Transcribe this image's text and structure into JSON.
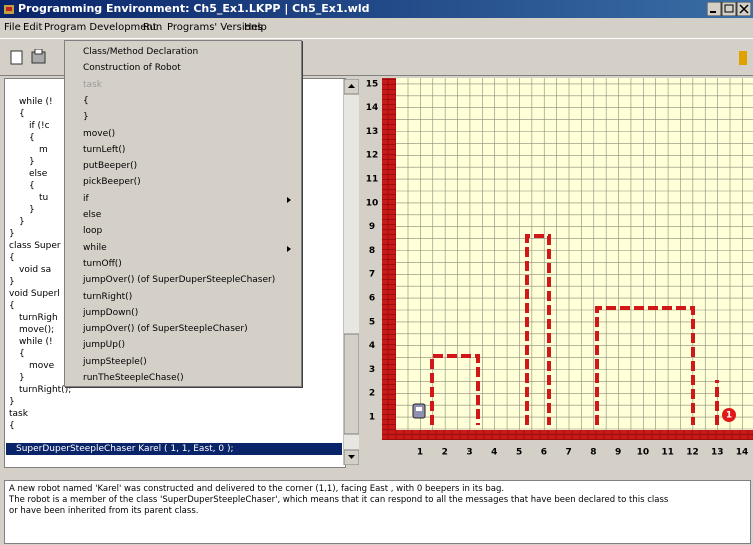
{
  "window": {
    "title": "Programming Environment: Ch5_Ex1.LKPP  |  Ch5_Ex1.wld"
  },
  "menu": [
    "File",
    "Edit",
    "Program Development",
    "Run",
    "Programs' Versions",
    "Help"
  ],
  "dropdown": {
    "items": [
      "Class/Method Declaration",
      "Construction of Robot",
      "task",
      "{",
      "}",
      "move()",
      "turnLeft()",
      "putBeeper()",
      "pickBeeper()",
      "if",
      "else",
      "loop",
      "while",
      "turnOff()",
      "jumpOver() (of SuperDuperSteepleChaser)",
      "turnRight()",
      "jumpDown()",
      "jumpOver() (of SuperSteepleChaser)",
      "jumpUp()",
      "jumpSteeple()",
      "runTheSteepleChase()"
    ]
  },
  "code": {
    "lines": [
      "while (!",
      "{",
      "if (!c",
      "{",
      "m",
      "}",
      "else",
      "{",
      "tu",
      "}",
      "}",
      "}",
      "class Super",
      "{",
      "void sa",
      "}",
      "void Superl",
      "{",
      "turnRigh",
      "move();",
      "while (!",
      "{",
      "move",
      "}",
      "turnRight();",
      "}",
      "task",
      "{"
    ],
    "selected": "SuperDuperSteepleChaser Karel ( 1, 1, East, 0 );"
  },
  "world": {
    "street_labels": [
      1,
      2,
      3,
      4,
      5,
      6,
      7,
      8,
      9,
      10,
      11,
      12,
      13,
      14,
      15
    ],
    "avenue_labels": [
      1,
      2,
      3,
      4,
      5,
      6,
      7,
      8,
      9,
      10,
      11,
      12,
      13,
      14
    ],
    "beeper_label": "1"
  },
  "messages": [
    "A new robot named 'Karel' was constructed and delivered to the corner (1,1), facing East , with 0 beepers in its bag.",
    "The robot is a member of the class 'SuperDuperSteepleChaser', which means that it can respond to all the messages that have been declared to this class",
    "or have been inherited from its parent class."
  ]
}
